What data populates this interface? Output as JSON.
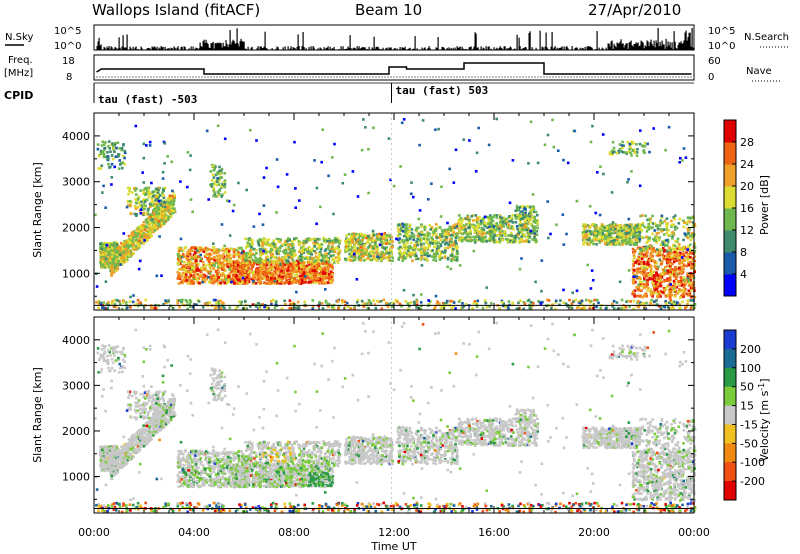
{
  "header": {
    "station": "Wallops Island (fitACF)",
    "beam": "Beam 10",
    "date": "27/Apr/2010"
  },
  "summary": {
    "nsky_label": "N.Sky",
    "nsky_ticks": [
      "10^5",
      "10^0"
    ],
    "nsearch_label": "N.Search",
    "nsearch_ticks": [
      "10^5",
      "10^0"
    ],
    "freq_label_top": "Freq.",
    "freq_label_bottom": "[MHz]",
    "freq_ticks": [
      "18",
      "8"
    ],
    "nave_label": "Nave",
    "nave_ticks": [
      "60",
      "0"
    ],
    "cpid_label": "CPID",
    "cpid_programs": [
      {
        "label": "tau (fast) -503",
        "start_hour": 0.0
      },
      {
        "label": "tau (fast) 503",
        "start_hour": 11.9
      }
    ]
  },
  "chart_data": [
    {
      "type": "heatmap",
      "panel": "power",
      "xlabel": "Time UT",
      "ylabel": "Slant Range [km]",
      "x_ticks": [
        "00:00",
        "04:00",
        "08:00",
        "12:00",
        "16:00",
        "20:00",
        "00:00"
      ],
      "y_ticks": [
        1000,
        2000,
        3000,
        4000
      ],
      "xlim": [
        0,
        24
      ],
      "ylim": [
        200,
        4500
      ],
      "colorbar_label": "Power [dB]",
      "colorbar_ticks": [
        4,
        8,
        12,
        16,
        20,
        24,
        28
      ],
      "colorbar_colors": [
        "#0000ff",
        "#1a5aaa",
        "#3e8a6e",
        "#6fb850",
        "#dcdc32",
        "#f0a028",
        "#f06414",
        "#e00000"
      ],
      "colorbar_range": [
        0,
        32
      ]
    },
    {
      "type": "heatmap",
      "panel": "velocity",
      "xlabel": "Time UT",
      "ylabel": "Slant Range [km]",
      "x_ticks": [
        "00:00",
        "04:00",
        "08:00",
        "12:00",
        "16:00",
        "20:00",
        "00:00"
      ],
      "y_ticks": [
        1000,
        2000,
        3000,
        4000
      ],
      "xlim": [
        0,
        24
      ],
      "ylim": [
        200,
        4500
      ],
      "colorbar_label": "Velocity [m s^-1]",
      "colorbar_ticks": [
        "200",
        "100",
        "50",
        "15",
        "-15",
        "-50",
        "-100",
        "-200"
      ],
      "colorbar_colors": [
        "#1a3cd2",
        "#1a6a96",
        "#2a9a46",
        "#7acc3a",
        "#c8c8c8",
        "#f0c020",
        "#f08a10",
        "#f05014",
        "#e00000"
      ]
    }
  ]
}
